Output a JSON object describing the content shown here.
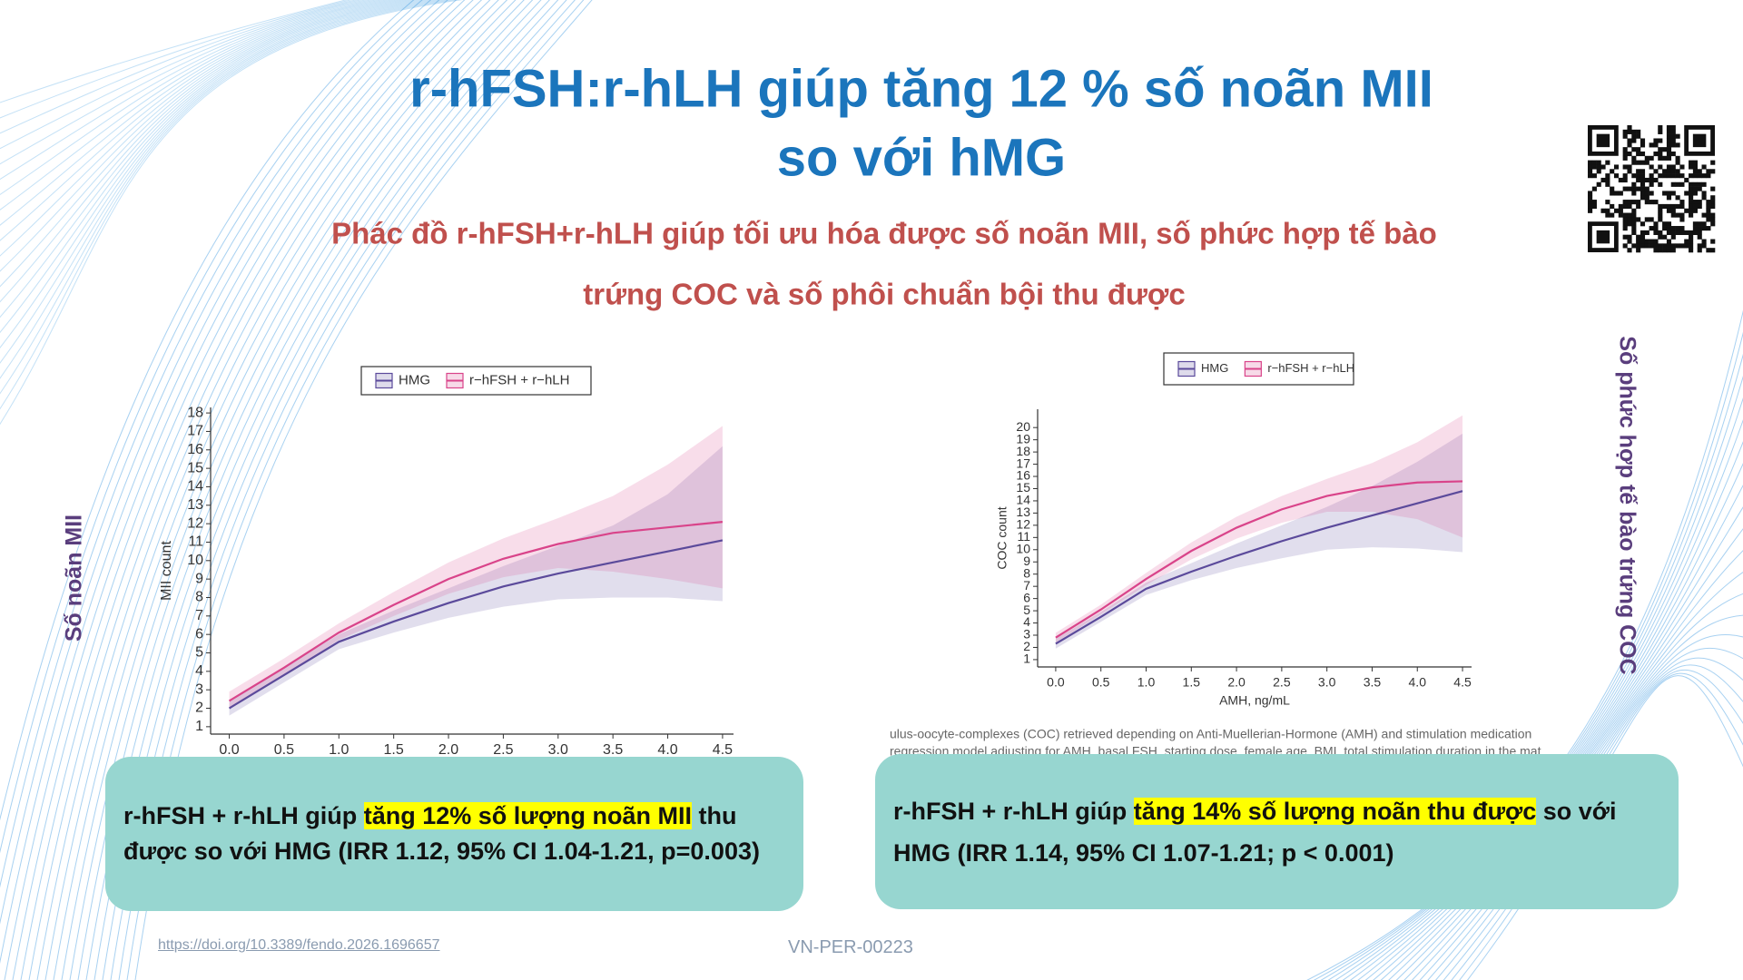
{
  "title_lines": [
    "r-hFSH:r-hLH giúp tăng 12 % số noãn MII",
    "so với hMG"
  ],
  "subtitle_lines": [
    "Phác đồ r-hFSH+r-hLH giúp tối ưu hóa được số noãn MII, số phức hợp tế bào",
    "trứng COC và số phôi chuẩn bội thu được"
  ],
  "side_labels": [
    "Số noãn MII",
    "Số phức hợp tế bào trứng COC"
  ],
  "chart_data": [
    {
      "type": "line",
      "ylabel": "MII count",
      "x": [
        0,
        0.5,
        1,
        1.5,
        2,
        2.5,
        3,
        3.5,
        4,
        4.5
      ],
      "xlim": [
        -0.17,
        4.6
      ],
      "ylim": [
        0.6,
        18.3
      ],
      "xticks": [
        {
          "value": 0,
          "label": "0.0"
        },
        0.5,
        {
          "value": 1,
          "label": "1.0"
        },
        1.5,
        {
          "value": 2,
          "label": "2.0"
        },
        2.5,
        {
          "value": 3,
          "label": "3.0"
        },
        3.5,
        {
          "value": 4,
          "label": "4.0"
        },
        4.5
      ],
      "yticks": [
        1,
        2,
        3,
        4,
        5,
        6,
        7,
        8,
        9,
        10,
        11,
        12,
        13,
        14,
        15,
        16,
        17,
        18
      ],
      "series": [
        {
          "name": "HMG",
          "color": "#5b4a9b",
          "values": [
            2.0,
            3.8,
            5.6,
            6.7,
            7.7,
            8.6,
            9.3,
            9.9,
            10.5,
            11.1
          ],
          "lower": [
            1.6,
            3.4,
            5.2,
            6.1,
            6.9,
            7.5,
            7.9,
            8.0,
            8.0,
            7.8
          ],
          "upper": [
            2.4,
            4.2,
            6.0,
            7.3,
            8.5,
            9.7,
            10.8,
            11.9,
            13.6,
            16.2
          ]
        },
        {
          "name": "r−hFSH + r−hLH",
          "color": "#d9448a",
          "values": [
            2.4,
            4.2,
            6.1,
            7.6,
            9.0,
            10.1,
            10.9,
            11.5,
            11.8,
            12.1
          ],
          "lower": [
            2.0,
            3.8,
            5.7,
            7.0,
            8.2,
            9.1,
            9.6,
            9.4,
            9.0,
            8.5
          ],
          "upper": [
            2.9,
            4.7,
            6.6,
            8.3,
            9.9,
            11.2,
            12.3,
            13.5,
            15.2,
            17.3
          ]
        }
      ]
    },
    {
      "type": "line",
      "ylabel": "COC count",
      "xlabel": "AMH, ng/mL",
      "x": [
        0,
        0.5,
        1,
        1.5,
        2,
        2.5,
        3,
        3.5,
        4,
        4.5
      ],
      "xlim": [
        -0.2,
        4.6
      ],
      "ylim": [
        0.4,
        21.5
      ],
      "xticks": [
        {
          "value": 0,
          "label": "0.0"
        },
        0.5,
        {
          "value": 1,
          "label": "1.0"
        },
        1.5,
        {
          "value": 2,
          "label": "2.0"
        },
        2.5,
        {
          "value": 3,
          "label": "3.0"
        },
        3.5,
        {
          "value": 4,
          "label": "4.0"
        },
        4.5
      ],
      "yticks": [
        1,
        2,
        3,
        4,
        5,
        6,
        7,
        8,
        9,
        10,
        11,
        12,
        13,
        14,
        15,
        16,
        17,
        18,
        19,
        20
      ],
      "series": [
        {
          "name": "HMG",
          "color": "#5b4a9b",
          "values": [
            2.3,
            4.5,
            6.8,
            8.2,
            9.5,
            10.7,
            11.8,
            12.8,
            13.8,
            14.8
          ],
          "lower": [
            1.9,
            4.1,
            6.3,
            7.5,
            8.5,
            9.3,
            10.0,
            10.2,
            10.1,
            9.8
          ],
          "upper": [
            2.7,
            4.9,
            7.3,
            8.9,
            10.5,
            12.0,
            13.5,
            15.2,
            17.2,
            19.5
          ]
        },
        {
          "name": "r−hFSH + r−hLH",
          "color": "#d9448a",
          "values": [
            2.8,
            5.1,
            7.6,
            9.9,
            11.8,
            13.3,
            14.4,
            15.1,
            15.5,
            15.6
          ],
          "lower": [
            2.4,
            4.7,
            7.1,
            9.2,
            10.9,
            12.2,
            13.1,
            13.1,
            12.5,
            11.0
          ],
          "upper": [
            3.2,
            5.5,
            8.1,
            10.6,
            12.7,
            14.4,
            15.8,
            17.1,
            18.8,
            21.0
          ]
        }
      ]
    }
  ],
  "caption_lines": [
    "ulus-oocyte-complexes (COC) retrieved depending on Anti-Muellerian-Hormone (AMH) and stimulation medication",
    "regression model adjusting for AMH, basal FSH, starting dose, female age, BMI, total stimulation duration in the mat"
  ],
  "callouts": [
    {
      "before": "r-hFSH + r-hLH giúp ",
      "highlight": "tăng 12% số lượng noãn MII",
      "after": " thu được so với HMG (IRR 1.12, 95% CI 1.04-1.21, p=0.003)"
    },
    {
      "before": "r-hFSH + r-hLH giúp ",
      "highlight": "tăng 14% số lượng noãn thu được",
      "after": " so với HMG (IRR 1.14, 95% CI 1.07-1.21; p < 0.001)"
    }
  ],
  "footer": {
    "doi": "https://doi.org/10.3389/fendo.2026.1696657",
    "code": "VN-PER-00223"
  }
}
